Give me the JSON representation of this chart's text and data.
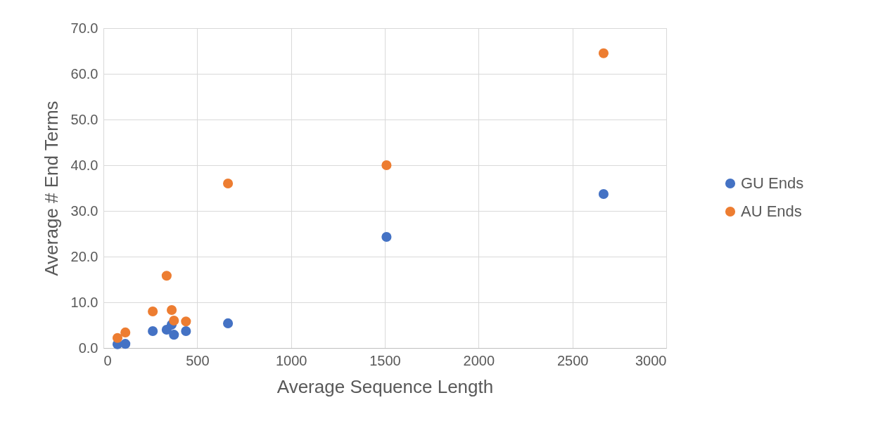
{
  "chart_data": {
    "type": "scatter",
    "xlabel": "Average Sequence Length",
    "ylabel": "Average # End Terms",
    "x": [
      75,
      117,
      263,
      337,
      364,
      376,
      440,
      664,
      1509,
      2666
    ],
    "series": [
      {
        "name": "GU Ends",
        "color": "#4472c4",
        "values": [
          0.8,
          0.9,
          3.7,
          4.0,
          5.1,
          2.9,
          3.7,
          5.4,
          24.3,
          33.7
        ]
      },
      {
        "name": "AU Ends",
        "color": "#ed7d31",
        "values": [
          2.2,
          3.4,
          8.0,
          15.8,
          8.3,
          6.0,
          5.8,
          36.0,
          40.0,
          64.5
        ]
      }
    ],
    "xlim": [
      0,
      3000
    ],
    "xticks": [
      0,
      500,
      1000,
      1500,
      2000,
      2500,
      3000
    ],
    "ylim": [
      0,
      70
    ],
    "yticks": [
      {
        "value": 0,
        "label": "0.0"
      },
      {
        "value": 10,
        "label": "10.0"
      },
      {
        "value": 20,
        "label": "20.0"
      },
      {
        "value": 30,
        "label": "30.0"
      },
      {
        "value": 40,
        "label": "40.0"
      },
      {
        "value": 50,
        "label": "50.0"
      },
      {
        "value": 60,
        "label": "60.0"
      },
      {
        "value": 70,
        "label": "70.0"
      }
    ],
    "grid": true,
    "legend": "right",
    "marker": "circle"
  }
}
